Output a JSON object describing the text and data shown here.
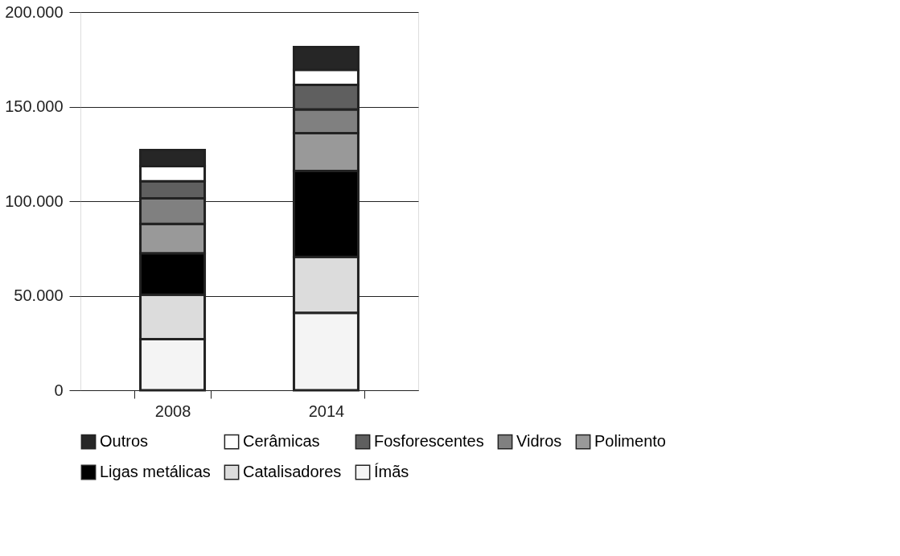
{
  "chart_data": {
    "type": "bar",
    "stacked": true,
    "categories": [
      "2008",
      "2014"
    ],
    "series": [
      {
        "name": "Ímãs",
        "color": "#f4f4f4",
        "values": [
          27000,
          41000
        ]
      },
      {
        "name": "Catalisadores",
        "color": "#dcdcdc",
        "values": [
          23500,
          29500
        ]
      },
      {
        "name": "Ligas metálicas",
        "color": "#000000",
        "values": [
          22000,
          45500
        ]
      },
      {
        "name": "Polimento",
        "color": "#999999",
        "values": [
          15500,
          20000
        ]
      },
      {
        "name": "Vidros",
        "color": "#808080",
        "values": [
          13500,
          12500
        ]
      },
      {
        "name": "Fosforescentes",
        "color": "#5f5f5f",
        "values": [
          9000,
          13000
        ]
      },
      {
        "name": "Cerâmicas",
        "color": "#ffffff",
        "values": [
          8000,
          8000
        ]
      },
      {
        "name": "Outros",
        "color": "#262626",
        "values": [
          8500,
          12000
        ]
      }
    ],
    "ylim": [
      0,
      200000
    ],
    "yticks": [
      {
        "value": 0,
        "label": "0"
      },
      {
        "value": 50000,
        "label": "50.000"
      },
      {
        "value": 100000,
        "label": "100.000"
      },
      {
        "value": 150000,
        "label": "150.000"
      },
      {
        "value": 200000,
        "label": "200.000"
      }
    ],
    "grid": "y",
    "legend": "bottom"
  }
}
